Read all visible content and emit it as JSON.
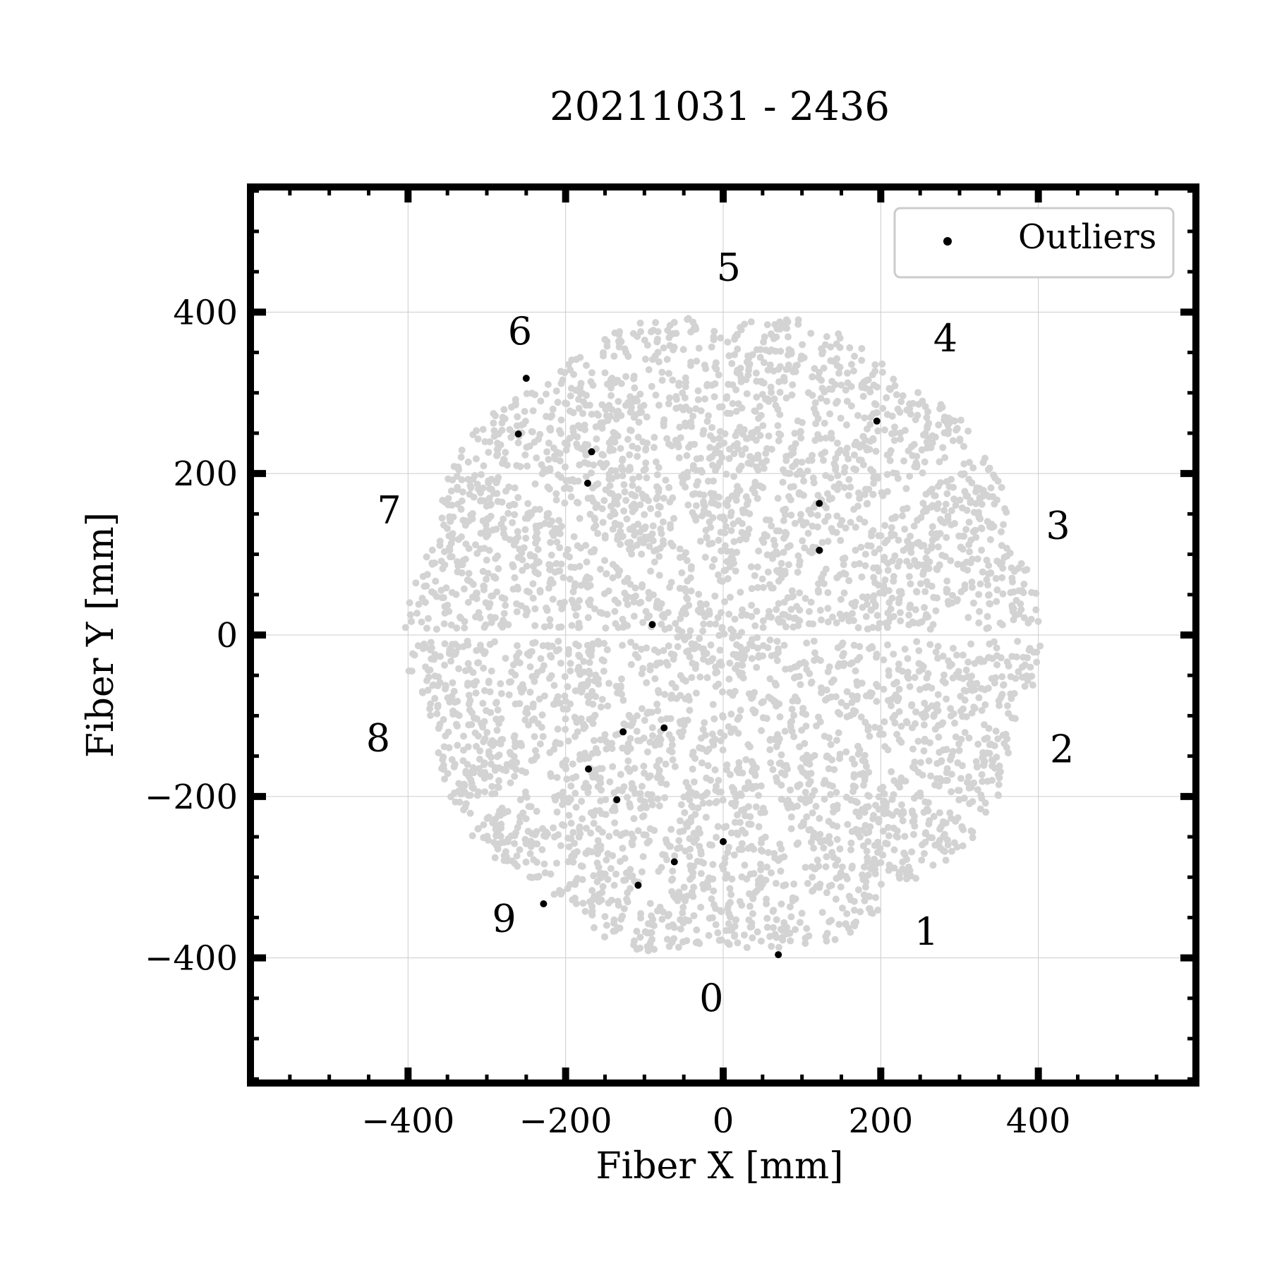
{
  "chart_data": {
    "type": "scatter",
    "title": "20211031 - 2436",
    "xlabel": "Fiber X [mm]",
    "ylabel": "Fiber Y [mm]",
    "xlim": [
      -600,
      600
    ],
    "ylim": [
      -555,
      555
    ],
    "xticks": [
      -400,
      -200,
      0,
      200,
      400
    ],
    "yticks": [
      -400,
      -200,
      0,
      200,
      400
    ],
    "xtick_labels": [
      "−400",
      "−200",
      "0",
      "200",
      "400"
    ],
    "ytick_labels": [
      "−400",
      "−200",
      "0",
      "200",
      "400"
    ],
    "grid": true,
    "legend_position": "top-right",
    "series": [
      {
        "key": "background",
        "color": "#d3d3d3",
        "description_visible": false,
        "distribution": {
          "radius": 405,
          "count": 4300,
          "petal_gap_angles_deg": [
            -72,
            -36,
            0,
            36,
            72,
            108,
            144,
            180,
            216,
            252
          ]
        }
      },
      {
        "key": "outliers",
        "name": "Outliers",
        "color": "#000000",
        "x": [
          -250,
          -260,
          -167,
          -172,
          195,
          122,
          122,
          -90,
          -75,
          -127,
          -171,
          -135,
          0,
          -62,
          -108,
          -228,
          70
        ],
        "y": [
          318,
          249,
          227,
          188,
          265,
          163,
          105,
          13,
          -115,
          -120,
          -166,
          -204,
          -256,
          -281,
          -310,
          -333,
          -396
        ]
      }
    ],
    "annotations": [
      {
        "text": "0",
        "x": -15,
        "y": -450
      },
      {
        "text": "1",
        "x": 258,
        "y": -368
      },
      {
        "text": "2",
        "x": 430,
        "y": -142
      },
      {
        "text": "3",
        "x": 425,
        "y": 135
      },
      {
        "text": "4",
        "x": 282,
        "y": 367
      },
      {
        "text": "5",
        "x": 7,
        "y": 455
      },
      {
        "text": "6",
        "x": -258,
        "y": 376
      },
      {
        "text": "7",
        "x": -424,
        "y": 154
      },
      {
        "text": "8",
        "x": -438,
        "y": -128
      },
      {
        "text": "9",
        "x": -278,
        "y": -352
      }
    ]
  }
}
